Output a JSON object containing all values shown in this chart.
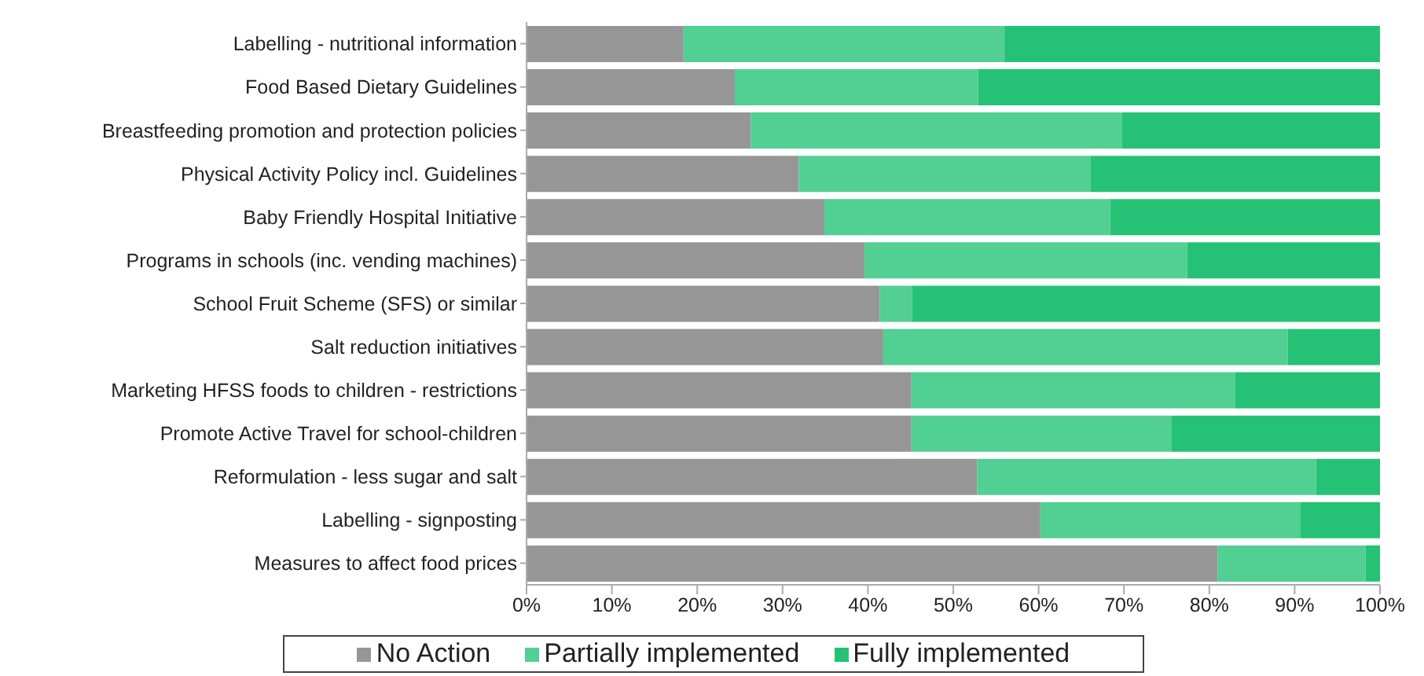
{
  "chart_data": {
    "type": "bar",
    "orientation": "horizontal",
    "stacked": true,
    "categories": [
      "Labelling - nutritional information",
      "Food Based Dietary Guidelines",
      "Breastfeeding promotion and protection policies",
      "Physical Activity Policy incl. Guidelines",
      "Baby Friendly Hospital Initiative",
      "Programs in schools (inc. vending machines)",
      "School Fruit Scheme (SFS) or similar",
      "Salt reduction initiatives",
      "Marketing HFSS foods to children - restrictions",
      "Promote Active Travel for school-children",
      "Reformulation - less sugar and salt",
      "Labelling - signposting",
      "Measures to affect food prices"
    ],
    "series": [
      {
        "name": "No Action",
        "color": "#969696",
        "values": [
          18.4,
          24.4,
          26.3,
          31.9,
          34.9,
          39.6,
          41.4,
          41.8,
          45.1,
          45.1,
          52.8,
          60.2,
          81.0
        ]
      },
      {
        "name": "Partially implemented",
        "color": "#52cf92",
        "values": [
          37.6,
          28.5,
          43.5,
          34.2,
          33.5,
          37.8,
          3.8,
          47.4,
          37.9,
          30.5,
          39.7,
          30.5,
          17.3
        ]
      },
      {
        "name": "Fully implemented",
        "color": "#25c275",
        "values": [
          44.0,
          47.1,
          30.2,
          33.9,
          31.6,
          22.6,
          54.8,
          10.8,
          17.0,
          24.4,
          7.5,
          9.3,
          1.7
        ]
      }
    ],
    "xlim": [
      0,
      100
    ],
    "xticks": [
      {
        "value": 0,
        "label": "0%"
      },
      {
        "value": 10,
        "label": "10%"
      },
      {
        "value": 20,
        "label": "20%"
      },
      {
        "value": 30,
        "label": "30%"
      },
      {
        "value": 40,
        "label": "40%"
      },
      {
        "value": 50,
        "label": "50%"
      },
      {
        "value": 60,
        "label": "60%"
      },
      {
        "value": 70,
        "label": "70%"
      },
      {
        "value": 80,
        "label": "80%"
      },
      {
        "value": 90,
        "label": "90%"
      },
      {
        "value": 100,
        "label": "100%"
      }
    ],
    "grid": false,
    "legend": "bottom"
  }
}
